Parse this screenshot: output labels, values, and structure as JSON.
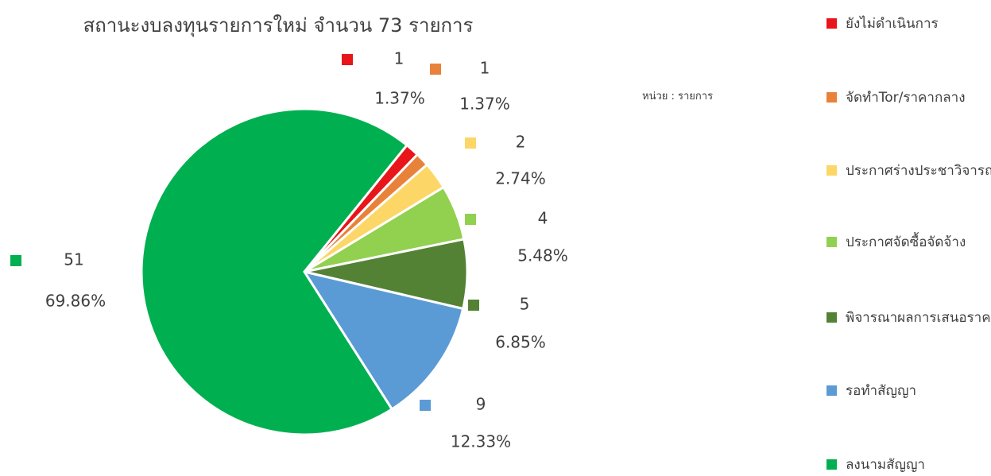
{
  "chart_data": {
    "type": "pie",
    "title": "สถานะงบลงทุนรายการใหม่  จำนวน 73 รายการ",
    "unit_label": "หน่วย : รายการ",
    "categories": [
      "ยังไม่ดำเนินการ",
      "จัดทำTor/ราคากลาง",
      "ประกาศร่างประชาวิจารณ์",
      "ประกาศจัดซื้อจัดจ้าง",
      "พิจารณาผลการเสนอราคา",
      "รอทำสัญญา",
      "ลงนามสัญญา"
    ],
    "values": [
      1,
      1,
      2,
      4,
      5,
      9,
      51
    ],
    "percent_labels": [
      "1.37%",
      "1.37%",
      "2.74%",
      "5.48%",
      "6.85%",
      "12.33%",
      "69.86%"
    ],
    "colors": [
      "#e8151b",
      "#e8823a",
      "#fcd767",
      "#92d050",
      "#548235",
      "#5b9bd5",
      "#00b050"
    ],
    "legend": "right"
  }
}
